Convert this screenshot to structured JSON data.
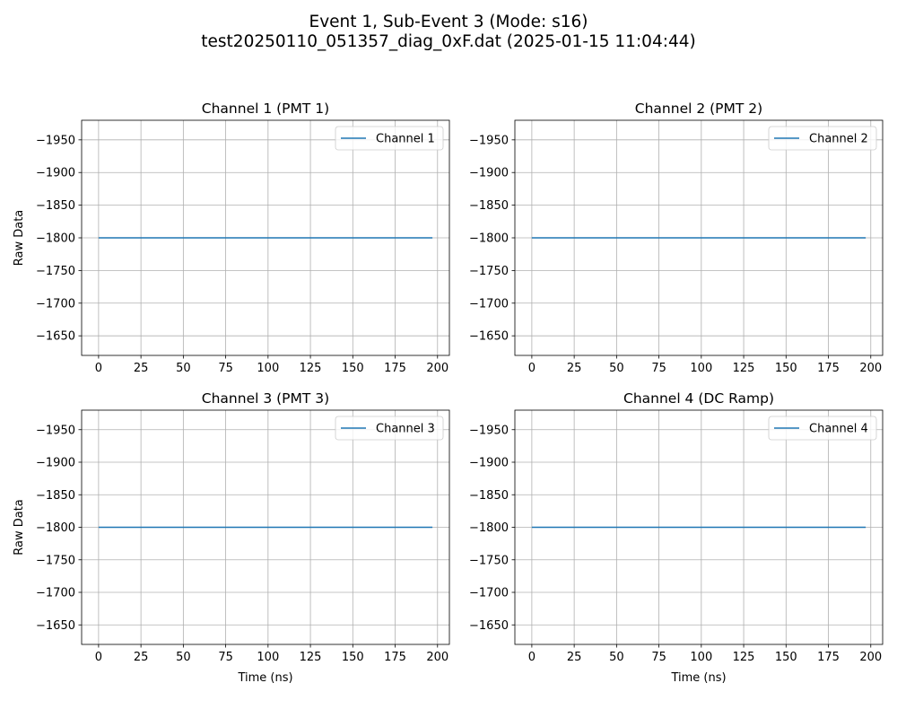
{
  "figure": {
    "title_line1": "Event 1, Sub-Event 3 (Mode: s16)",
    "title_line2": "test20250110_051357_diag_0xF.dat (2025-01-15 11:04:44)",
    "line_color": "#1f77b4",
    "grid_color": "#b0b0b0"
  },
  "chart_data": [
    {
      "type": "line",
      "title": "Channel 1 (PMT 1)",
      "xlabel": "",
      "ylabel": "Raw Data",
      "xlim": [
        -10,
        207
      ],
      "ylim": [
        -1620,
        -1980
      ],
      "y_inverted": true,
      "xticks": [
        0,
        25,
        50,
        75,
        100,
        125,
        150,
        175,
        200
      ],
      "yticks": [
        -1650,
        -1700,
        -1750,
        -1800,
        -1850,
        -1900,
        -1950
      ],
      "grid": true,
      "legend_position": "upper right",
      "series": [
        {
          "name": "Channel 1",
          "x": [
            0,
            197
          ],
          "y": [
            -1800,
            -1800
          ]
        }
      ]
    },
    {
      "type": "line",
      "title": "Channel 2 (PMT 2)",
      "xlabel": "",
      "ylabel": "",
      "xlim": [
        -10,
        207
      ],
      "ylim": [
        -1620,
        -1980
      ],
      "y_inverted": true,
      "xticks": [
        0,
        25,
        50,
        75,
        100,
        125,
        150,
        175,
        200
      ],
      "yticks": [
        -1650,
        -1700,
        -1750,
        -1800,
        -1850,
        -1900,
        -1950
      ],
      "grid": true,
      "legend_position": "upper right",
      "series": [
        {
          "name": "Channel 2",
          "x": [
            0,
            197
          ],
          "y": [
            -1800,
            -1800
          ]
        }
      ]
    },
    {
      "type": "line",
      "title": "Channel 3 (PMT 3)",
      "xlabel": "Time (ns)",
      "ylabel": "Raw Data",
      "xlim": [
        -10,
        207
      ],
      "ylim": [
        -1620,
        -1980
      ],
      "y_inverted": true,
      "xticks": [
        0,
        25,
        50,
        75,
        100,
        125,
        150,
        175,
        200
      ],
      "yticks": [
        -1650,
        -1700,
        -1750,
        -1800,
        -1850,
        -1900,
        -1950
      ],
      "grid": true,
      "legend_position": "upper right",
      "series": [
        {
          "name": "Channel 3",
          "x": [
            0,
            197
          ],
          "y": [
            -1800,
            -1800
          ]
        }
      ]
    },
    {
      "type": "line",
      "title": "Channel 4 (DC Ramp)",
      "xlabel": "Time (ns)",
      "ylabel": "",
      "xlim": [
        -10,
        207
      ],
      "ylim": [
        -1620,
        -1980
      ],
      "y_inverted": true,
      "xticks": [
        0,
        25,
        50,
        75,
        100,
        125,
        150,
        175,
        200
      ],
      "yticks": [
        -1650,
        -1700,
        -1750,
        -1800,
        -1850,
        -1900,
        -1950
      ],
      "grid": true,
      "legend_position": "upper right",
      "series": [
        {
          "name": "Channel 4",
          "x": [
            0,
            197
          ],
          "y": [
            -1800,
            -1800
          ]
        }
      ]
    }
  ]
}
